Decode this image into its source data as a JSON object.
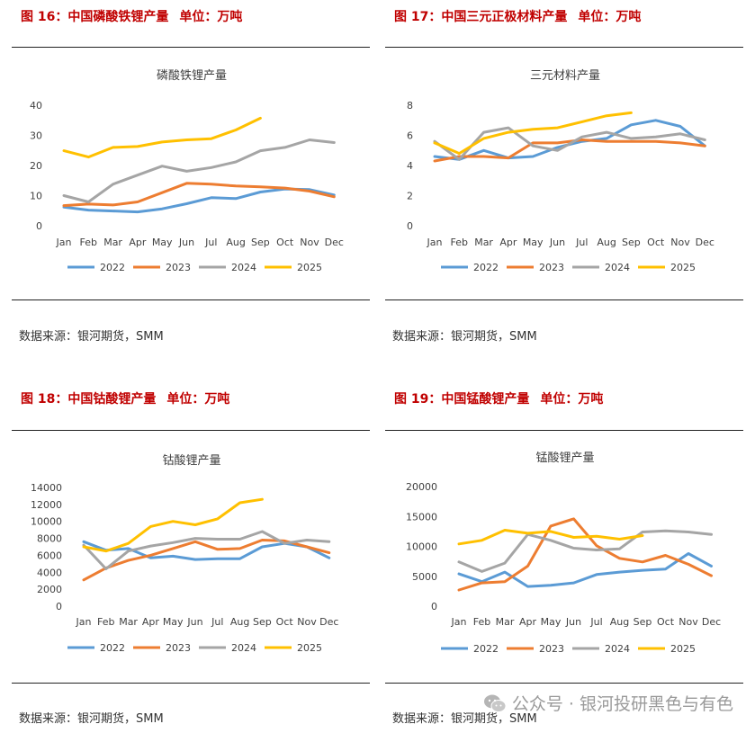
{
  "series_names": [
    "2022",
    "2023",
    "2024",
    "2025"
  ],
  "series_colors": [
    "#5b9bd5",
    "#ed7d31",
    "#a5a5a5",
    "#ffc000"
  ],
  "source_text": "数据来源：银河期货，SMM",
  "watermark": {
    "text": "公众号 · 银河投研黑色与有色"
  },
  "figures": [
    {
      "title": "图 16：中国磷酸铁锂产量",
      "unit": "单位：万吨"
    },
    {
      "title": "图 17：中国三元正极材料产量",
      "unit": "单位：万吨"
    },
    {
      "title": "图 18：中国钴酸锂产量",
      "unit": "单位：万吨"
    },
    {
      "title": "图 19：中国锰酸锂产量",
      "unit": "单位：万吨"
    }
  ],
  "chart_data": [
    {
      "type": "line",
      "title": "磷酸铁锂产量",
      "categories": [
        "Jan",
        "Feb",
        "Mar",
        "Apr",
        "May",
        "Jun",
        "Jul",
        "Aug",
        "Sep",
        "Oct",
        "Nov",
        "Dec"
      ],
      "yticks": [
        "0",
        "10",
        "20",
        "30",
        "40"
      ],
      "ylim": [
        0,
        40
      ],
      "series": [
        {
          "name": "2022",
          "values": [
            6.2,
            5.2,
            4.9,
            4.6,
            5.6,
            7.3,
            9.3,
            9.0,
            11.2,
            12.2,
            12.0,
            10.2
          ]
        },
        {
          "name": "2023",
          "values": [
            6.7,
            7.2,
            6.9,
            7.9,
            11.0,
            14.1,
            13.8,
            13.2,
            12.9,
            12.5,
            11.5,
            9.6
          ]
        },
        {
          "name": "2024",
          "values": [
            10.0,
            7.9,
            13.8,
            16.8,
            19.8,
            18.1,
            19.3,
            21.2,
            24.9,
            26.0,
            28.5,
            27.6
          ]
        },
        {
          "name": "2025",
          "values": [
            24.9,
            22.8,
            26.0,
            26.3,
            27.8,
            28.5,
            28.9,
            31.8,
            35.7,
            null,
            null,
            null
          ]
        }
      ]
    },
    {
      "type": "line",
      "title": "三元材料产量",
      "categories": [
        "Jan",
        "Feb",
        "Mar",
        "Apr",
        "May",
        "Jun",
        "Jul",
        "Aug",
        "Sep",
        "Oct",
        "Nov",
        "Dec"
      ],
      "yticks": [
        "0",
        "2",
        "4",
        "6",
        "8"
      ],
      "ylim": [
        0,
        8
      ],
      "series": [
        {
          "name": "2022",
          "values": [
            4.6,
            4.4,
            5.0,
            4.5,
            4.6,
            5.2,
            5.6,
            5.8,
            6.7,
            7.0,
            6.6,
            5.3
          ]
        },
        {
          "name": "2023",
          "values": [
            4.3,
            4.6,
            4.6,
            4.5,
            5.5,
            5.5,
            5.7,
            5.6,
            5.6,
            5.6,
            5.5,
            5.3
          ]
        },
        {
          "name": "2024",
          "values": [
            5.6,
            4.4,
            6.2,
            6.5,
            5.3,
            5.0,
            5.9,
            6.2,
            5.8,
            5.9,
            6.1,
            5.7
          ]
        },
        {
          "name": "2025",
          "values": [
            5.5,
            4.8,
            5.8,
            6.2,
            6.4,
            6.5,
            6.9,
            7.3,
            7.5,
            null,
            null,
            null
          ]
        }
      ]
    },
    {
      "type": "line",
      "title": "钴酸锂产量",
      "categories": [
        "Jan",
        "Feb",
        "Mar",
        "Apr",
        "May",
        "Jun",
        "Jul",
        "Aug",
        "Sep",
        "Oct",
        "Nov",
        "Dec"
      ],
      "yticks": [
        "0",
        "2000",
        "4000",
        "6000",
        "8000",
        "10000",
        "12000",
        "14000"
      ],
      "ylim": [
        0,
        14000
      ],
      "series": [
        {
          "name": "2022",
          "values": [
            7600,
            6600,
            6800,
            5700,
            5900,
            5500,
            5600,
            5600,
            7000,
            7400,
            7000,
            5700
          ]
        },
        {
          "name": "2023",
          "values": [
            3100,
            4500,
            5400,
            6000,
            6800,
            7600,
            6700,
            6800,
            7800,
            7700,
            7000,
            6300
          ]
        },
        {
          "name": "2024",
          "values": [
            7200,
            4400,
            6500,
            7100,
            7500,
            8000,
            7900,
            7900,
            8800,
            7400,
            7800,
            7600
          ]
        },
        {
          "name": "2025",
          "values": [
            7000,
            6500,
            7400,
            9400,
            10000,
            9600,
            10300,
            12200,
            12600,
            null,
            null,
            null
          ]
        }
      ]
    },
    {
      "type": "line",
      "title": "锰酸锂产量",
      "categories": [
        "Jan",
        "Feb",
        "Mar",
        "Apr",
        "May",
        "Jun",
        "Jul",
        "Aug",
        "Sep",
        "Oct",
        "Nov",
        "Dec"
      ],
      "yticks": [
        "0",
        "5000",
        "10000",
        "15000",
        "20000"
      ],
      "ylim": [
        0,
        20000
      ],
      "series": [
        {
          "name": "2022",
          "values": [
            5400,
            4100,
            5700,
            3300,
            3500,
            3900,
            5300,
            5700,
            6000,
            6200,
            8800,
            6700
          ]
        },
        {
          "name": "2023",
          "values": [
            2700,
            3900,
            4100,
            6700,
            13400,
            14600,
            10100,
            8000,
            7400,
            8500,
            7000,
            5100
          ]
        },
        {
          "name": "2024",
          "values": [
            7400,
            5800,
            7200,
            12000,
            11000,
            9700,
            9400,
            9600,
            12400,
            12600,
            12400,
            12000
          ]
        },
        {
          "name": "2025",
          "values": [
            10400,
            11000,
            12700,
            12200,
            12500,
            11500,
            11700,
            11200,
            11800,
            null,
            null,
            null
          ]
        }
      ]
    }
  ]
}
